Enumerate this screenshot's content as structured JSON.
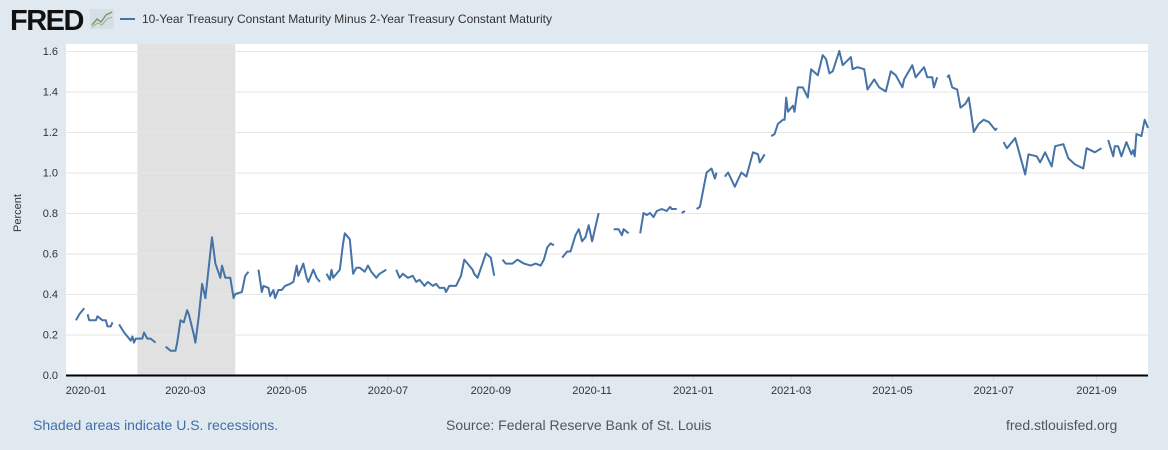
{
  "header": {
    "logo_text": "FRED",
    "legend_label": "10-Year Treasury Constant Maturity Minus 2-Year Treasury Constant Maturity"
  },
  "footer": {
    "recession_note": "Shaded areas indicate U.S. recessions.",
    "source": "Source: Federal Reserve Bank of St. Louis",
    "site": "fred.stlouisfed.org"
  },
  "colors": {
    "line": "#4572a7",
    "recession": "#e1e1e1",
    "background": "#e1e9f0"
  },
  "chart_data": {
    "type": "line",
    "title": "10-Year Treasury Constant Maturity Minus 2-Year Treasury Constant Maturity",
    "ylabel": "Percent",
    "xlabel": "",
    "x_origin": "2020-01-01",
    "x_unit": "days since x_origin",
    "xlim": [
      -12,
      640
    ],
    "ylim": [
      0,
      1.6
    ],
    "yticks": [
      0,
      0.2,
      0.4,
      0.6,
      0.8,
      1.0,
      1.2,
      1.4,
      1.6
    ],
    "ytick_labels": [
      "0.0",
      "0.2",
      "0.4",
      "0.6",
      "0.8",
      "1.0",
      "1.2",
      "1.4",
      "1.6"
    ],
    "xticks": [
      0,
      60,
      121,
      182,
      244,
      305,
      366,
      425,
      486,
      547,
      609
    ],
    "xtick_labels": [
      "2020-01",
      "2020-03",
      "2020-05",
      "2020-07",
      "2020-09",
      "2020-11",
      "2021-01",
      "2021-03",
      "2021-05",
      "2021-07",
      "2021-09"
    ],
    "grid": true,
    "recessions": [
      {
        "start": 31,
        "end": 90
      }
    ],
    "series": [
      {
        "name": "10-Year Treasury Constant Maturity Minus 2-Year Treasury Constant Maturity",
        "segments": [
          [
            [
              -6,
              0.27
            ],
            [
              -4,
              0.3
            ],
            [
              -1,
              0.33
            ]
          ],
          [
            [
              1,
              0.3
            ],
            [
              2,
              0.27
            ],
            [
              6,
              0.27
            ],
            [
              7,
              0.29
            ],
            [
              10,
              0.27
            ],
            [
              12,
              0.27
            ],
            [
              13,
              0.24
            ],
            [
              15,
              0.24
            ],
            [
              16,
              0.26
            ]
          ],
          [
            [
              20,
              0.25
            ],
            [
              23,
              0.21
            ],
            [
              25,
              0.19
            ],
            [
              27,
              0.17
            ],
            [
              28,
              0.19
            ],
            [
              29,
              0.16
            ],
            [
              30,
              0.18
            ],
            [
              34,
              0.18
            ],
            [
              35,
              0.21
            ],
            [
              37,
              0.18
            ],
            [
              39,
              0.18
            ],
            [
              42,
              0.16
            ]
          ],
          [
            [
              48,
              0.14
            ],
            [
              51,
              0.12
            ],
            [
              54,
              0.12
            ],
            [
              55,
              0.16
            ],
            [
              57,
              0.27
            ],
            [
              59,
              0.26
            ],
            [
              61,
              0.32
            ],
            [
              62,
              0.3
            ],
            [
              65,
              0.2
            ],
            [
              66,
              0.16
            ],
            [
              68,
              0.29
            ],
            [
              70,
              0.45
            ],
            [
              72,
              0.38
            ],
            [
              76,
              0.68
            ],
            [
              78,
              0.55
            ],
            [
              81,
              0.48
            ],
            [
              82,
              0.54
            ],
            [
              84,
              0.48
            ],
            [
              87,
              0.48
            ],
            [
              89,
              0.38
            ],
            [
              90,
              0.4
            ],
            [
              94,
              0.41
            ],
            [
              96,
              0.49
            ],
            [
              98,
              0.51
            ]
          ],
          [
            [
              104,
              0.52
            ],
            [
              106,
              0.41
            ],
            [
              107,
              0.44
            ],
            [
              110,
              0.43
            ],
            [
              111,
              0.39
            ],
            [
              113,
              0.42
            ],
            [
              114,
              0.38
            ],
            [
              116,
              0.42
            ],
            [
              118,
              0.42
            ],
            [
              120,
              0.44
            ],
            [
              123,
              0.45
            ],
            [
              125,
              0.46
            ],
            [
              127,
              0.54
            ],
            [
              128,
              0.49
            ],
            [
              131,
              0.55
            ],
            [
              133,
              0.48
            ],
            [
              134,
              0.46
            ],
            [
              137,
              0.52
            ],
            [
              139,
              0.48
            ],
            [
              141,
              0.46
            ]
          ],
          [
            [
              145,
              0.5
            ],
            [
              147,
              0.47
            ],
            [
              148,
              0.52
            ],
            [
              149,
              0.48
            ],
            [
              151,
              0.5
            ],
            [
              153,
              0.52
            ],
            [
              155,
              0.65
            ],
            [
              156,
              0.7
            ],
            [
              159,
              0.67
            ],
            [
              161,
              0.5
            ],
            [
              163,
              0.53
            ],
            [
              165,
              0.53
            ],
            [
              168,
              0.51
            ],
            [
              170,
              0.54
            ],
            [
              172,
              0.51
            ],
            [
              175,
              0.48
            ],
            [
              177,
              0.5
            ],
            [
              181,
              0.52
            ]
          ],
          [
            [
              187,
              0.52
            ],
            [
              189,
              0.48
            ],
            [
              191,
              0.5
            ],
            [
              194,
              0.48
            ],
            [
              197,
              0.49
            ],
            [
              199,
              0.46
            ],
            [
              201,
              0.47
            ],
            [
              204,
              0.44
            ],
            [
              206,
              0.46
            ],
            [
              209,
              0.44
            ],
            [
              211,
              0.45
            ],
            [
              213,
              0.43
            ],
            [
              216,
              0.43
            ],
            [
              217,
              0.41
            ],
            [
              219,
              0.44
            ],
            [
              223,
              0.44
            ],
            [
              226,
              0.49
            ],
            [
              228,
              0.57
            ],
            [
              230,
              0.55
            ],
            [
              233,
              0.52
            ],
            [
              234,
              0.5
            ],
            [
              236,
              0.48
            ],
            [
              239,
              0.55
            ],
            [
              241,
              0.6
            ],
            [
              244,
              0.58
            ],
            [
              246,
              0.49
            ]
          ],
          [
            [
              251,
              0.57
            ],
            [
              253,
              0.55
            ],
            [
              257,
              0.55
            ],
            [
              260,
              0.57
            ],
            [
              264,
              0.55
            ],
            [
              268,
              0.54
            ],
            [
              271,
              0.55
            ],
            [
              274,
              0.54
            ],
            [
              276,
              0.57
            ],
            [
              278,
              0.63
            ],
            [
              280,
              0.65
            ],
            [
              282,
              0.64
            ]
          ],
          [
            [
              287,
              0.58
            ],
            [
              290,
              0.61
            ],
            [
              292,
              0.61
            ],
            [
              295,
              0.69
            ],
            [
              297,
              0.72
            ],
            [
              299,
              0.66
            ],
            [
              301,
              0.68
            ],
            [
              303,
              0.74
            ],
            [
              305,
              0.66
            ],
            [
              309,
              0.8
            ]
          ],
          [
            [
              318,
              0.72
            ],
            [
              321,
              0.72
            ],
            [
              323,
              0.69
            ],
            [
              324,
              0.72
            ],
            [
              327,
              0.7
            ]
          ],
          [
            [
              334,
              0.7
            ],
            [
              336,
              0.8
            ],
            [
              338,
              0.79
            ],
            [
              340,
              0.8
            ],
            [
              342,
              0.78
            ],
            [
              344,
              0.81
            ],
            [
              347,
              0.82
            ],
            [
              350,
              0.81
            ],
            [
              352,
              0.83
            ],
            [
              353,
              0.82
            ],
            [
              356,
              0.82
            ]
          ],
          [
            [
              359,
              0.8
            ],
            [
              361,
              0.81
            ]
          ],
          [
            [
              368,
              0.82
            ],
            [
              370,
              0.83
            ],
            [
              374,
              1.0
            ],
            [
              377,
              1.02
            ],
            [
              379,
              0.97
            ],
            [
              380,
              1.0
            ]
          ],
          [
            [
              385,
              0.98
            ],
            [
              387,
              1.0
            ],
            [
              391,
              0.93
            ],
            [
              395,
              1.0
            ],
            [
              398,
              0.98
            ],
            [
              402,
              1.1
            ],
            [
              405,
              1.09
            ],
            [
              406,
              1.05
            ],
            [
              409,
              1.09
            ]
          ],
          [
            [
              413,
              1.18
            ],
            [
              415,
              1.19
            ],
            [
              417,
              1.24
            ],
            [
              420,
              1.26
            ],
            [
              421,
              1.26
            ],
            [
              422,
              1.37
            ],
            [
              423,
              1.3
            ],
            [
              426,
              1.33
            ],
            [
              427,
              1.3
            ],
            [
              429,
              1.42
            ],
            [
              432,
              1.42
            ],
            [
              435,
              1.37
            ],
            [
              437,
              1.51
            ],
            [
              441,
              1.48
            ],
            [
              444,
              1.58
            ],
            [
              446,
              1.56
            ],
            [
              448,
              1.49
            ],
            [
              450,
              1.5
            ],
            [
              454,
              1.6
            ],
            [
              456,
              1.53
            ],
            [
              461,
              1.57
            ],
            [
              462,
              1.51
            ],
            [
              465,
              1.52
            ],
            [
              469,
              1.51
            ],
            [
              471,
              1.41
            ],
            [
              475,
              1.46
            ],
            [
              478,
              1.42
            ],
            [
              482,
              1.4
            ],
            [
              485,
              1.5
            ],
            [
              488,
              1.48
            ],
            [
              492,
              1.42
            ],
            [
              493,
              1.46
            ],
            [
              498,
              1.53
            ],
            [
              500,
              1.47
            ],
            [
              505,
              1.52
            ],
            [
              507,
              1.47
            ],
            [
              510,
              1.47
            ],
            [
              511,
              1.42
            ],
            [
              513,
              1.47
            ]
          ],
          [
            [
              519,
              1.47
            ],
            [
              520,
              1.48
            ],
            [
              522,
              1.42
            ],
            [
              525,
              1.41
            ],
            [
              527,
              1.32
            ],
            [
              530,
              1.34
            ],
            [
              532,
              1.37
            ],
            [
              535,
              1.2
            ],
            [
              538,
              1.24
            ],
            [
              541,
              1.26
            ],
            [
              544,
              1.25
            ],
            [
              548,
              1.21
            ],
            [
              549,
              1.22
            ]
          ],
          [
            [
              553,
              1.15
            ],
            [
              555,
              1.12
            ],
            [
              560,
              1.17
            ],
            [
              563,
              1.08
            ],
            [
              566,
              0.99
            ],
            [
              568,
              1.09
            ],
            [
              573,
              1.08
            ],
            [
              575,
              1.05
            ],
            [
              578,
              1.1
            ],
            [
              582,
              1.03
            ],
            [
              584,
              1.13
            ],
            [
              589,
              1.14
            ],
            [
              592,
              1.07
            ],
            [
              596,
              1.04
            ],
            [
              601,
              1.02
            ],
            [
              603,
              1.12
            ],
            [
              608,
              1.1
            ],
            [
              612,
              1.12
            ]
          ],
          [
            [
              616,
              1.16
            ],
            [
              619,
              1.08
            ],
            [
              620,
              1.13
            ],
            [
              622,
              1.13
            ],
            [
              624,
              1.08
            ],
            [
              627,
              1.15
            ],
            [
              630,
              1.09
            ],
            [
              631,
              1.11
            ],
            [
              632,
              1.08
            ],
            [
              633,
              1.19
            ],
            [
              636,
              1.18
            ],
            [
              638,
              1.26
            ],
            [
              640,
              1.22
            ]
          ]
        ]
      }
    ]
  }
}
